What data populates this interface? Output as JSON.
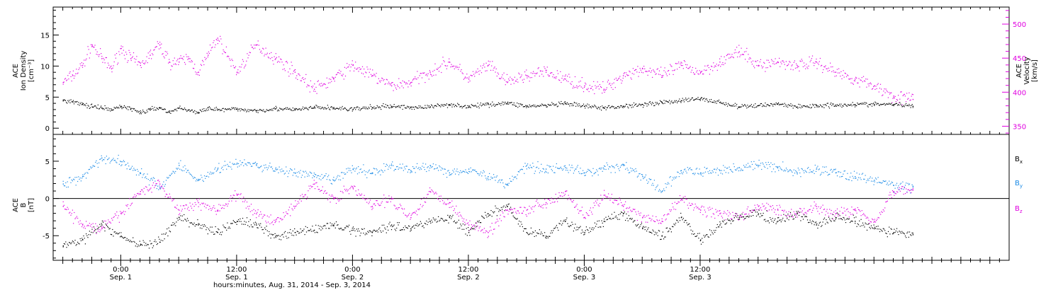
{
  "chart_data": [
    {
      "type": "scatter",
      "panel": "top",
      "ylabel_lines": [
        "ACE",
        "Ion Density",
        "[cm⁻³]"
      ],
      "ylabel2_lines": [
        "ACE",
        "Velocity",
        "[km/s]"
      ],
      "ylim": [
        -1,
        19.5
      ],
      "ylim2": [
        338,
        525
      ],
      "yticks": [
        0,
        5,
        10,
        15
      ],
      "yticks2": [
        350,
        400,
        450,
        500
      ],
      "ytick_labels": [
        "0",
        "5",
        "10",
        "15"
      ],
      "ytick2_labels": [
        "350",
        "400",
        "450",
        "500"
      ],
      "colors": {
        "density": "#000000",
        "velocity": "#e000e0"
      },
      "series": [
        {
          "key": "density",
          "color": "#000000",
          "x": [
            -6,
            -5,
            -4,
            -3,
            -2,
            -1,
            0,
            1,
            2,
            3,
            4,
            5,
            6,
            7,
            8,
            9,
            10,
            12,
            14,
            16,
            18,
            20,
            22,
            24,
            26,
            28,
            30,
            32,
            34,
            36,
            38,
            40,
            42,
            44,
            46,
            48,
            50,
            52,
            54,
            56,
            58,
            60,
            62,
            64,
            66,
            68,
            70,
            72,
            74,
            76,
            78,
            80,
            82
          ],
          "y": [
            4.6,
            4.3,
            3.9,
            3.5,
            3.3,
            3.0,
            3.6,
            3.2,
            2.6,
            3.0,
            3.4,
            2.6,
            3.3,
            3.0,
            2.5,
            3.4,
            3.0,
            3.1,
            2.9,
            3.2,
            3.0,
            3.4,
            3.3,
            3.1,
            3.4,
            3.6,
            3.4,
            3.5,
            3.9,
            3.5,
            3.9,
            4.1,
            3.6,
            3.7,
            4.0,
            3.6,
            3.3,
            3.6,
            3.9,
            4.2,
            4.5,
            4.8,
            4.2,
            3.5,
            3.7,
            4.0,
            3.5,
            3.7,
            3.8,
            3.9,
            3.9,
            3.9,
            3.6
          ]
        },
        {
          "key": "velocity",
          "color": "#e000e0",
          "x": [
            -6,
            -5,
            -4,
            -3,
            -2,
            -1,
            0,
            1,
            2,
            3,
            4,
            5,
            6,
            7,
            8,
            9,
            10,
            12,
            14,
            16,
            18,
            20,
            22,
            24,
            26,
            28,
            30,
            32,
            34,
            36,
            38,
            40,
            42,
            44,
            46,
            48,
            50,
            52,
            54,
            56,
            58,
            60,
            62,
            64,
            66,
            68,
            70,
            72,
            74,
            76,
            78,
            80,
            82
          ],
          "y": [
            415,
            425,
            440,
            470,
            450,
            435,
            465,
            450,
            440,
            455,
            470,
            445,
            445,
            450,
            430,
            455,
            480,
            430,
            470,
            450,
            430,
            405,
            420,
            440,
            425,
            410,
            415,
            430,
            445,
            420,
            440,
            415,
            425,
            430,
            420,
            410,
            405,
            425,
            435,
            425,
            440,
            430,
            445,
            460,
            440,
            445,
            440,
            445,
            430,
            420,
            410,
            395,
            390
          ]
        }
      ]
    },
    {
      "type": "scatter",
      "panel": "bottom",
      "ylabel_lines": [
        "ACE",
        "B",
        "[nT]"
      ],
      "ylim": [
        -8.3,
        8.6
      ],
      "yticks": [
        -5,
        0,
        5
      ],
      "ytick_labels": [
        "-5",
        "0",
        "5"
      ],
      "zero_line": 0,
      "legend": [
        {
          "label": "B",
          "sub": "x",
          "color": "#000000"
        },
        {
          "label": "B",
          "sub": "y",
          "color": "#1a8ae6"
        },
        {
          "label": "B",
          "sub": "z",
          "color": "#e000e0"
        }
      ],
      "series": [
        {
          "key": "Bx",
          "color": "#000000",
          "x": [
            -6,
            -4,
            -2,
            0,
            2,
            4,
            6,
            8,
            10,
            12,
            14,
            16,
            18,
            20,
            22,
            24,
            26,
            28,
            30,
            32,
            34,
            36,
            38,
            40,
            42,
            44,
            46,
            48,
            50,
            52,
            54,
            56,
            58,
            60,
            62,
            64,
            66,
            68,
            70,
            72,
            74,
            76,
            78,
            80,
            82
          ],
          "y": [
            -6.3,
            -5.5,
            -3.5,
            -5.0,
            -6.2,
            -5.8,
            -2.5,
            -3.5,
            -4.5,
            -3.0,
            -3.5,
            -5.0,
            -4.5,
            -4.2,
            -3.5,
            -4.2,
            -4.5,
            -3.5,
            -4.0,
            -3.0,
            -2.5,
            -4.5,
            -2.0,
            -1.0,
            -4.5,
            -5.0,
            -3.0,
            -4.5,
            -3.0,
            -2.0,
            -4.0,
            -5.0,
            -2.5,
            -5.5,
            -3.5,
            -2.5,
            -2.0,
            -3.0,
            -2.0,
            -3.5,
            -2.5,
            -3.0,
            -4.0,
            -4.5,
            -4.8
          ]
        },
        {
          "key": "By",
          "color": "#1a8ae6",
          "x": [
            -6,
            -4,
            -2,
            0,
            2,
            4,
            6,
            8,
            10,
            12,
            14,
            16,
            18,
            20,
            22,
            24,
            26,
            28,
            30,
            32,
            34,
            36,
            38,
            40,
            42,
            44,
            46,
            48,
            50,
            52,
            54,
            56,
            58,
            60,
            62,
            64,
            66,
            68,
            70,
            72,
            74,
            76,
            78,
            80,
            82
          ],
          "y": [
            2.0,
            3.0,
            5.5,
            5.0,
            3.5,
            1.5,
            4.5,
            2.5,
            4.0,
            4.8,
            4.5,
            4.0,
            3.5,
            3.0,
            2.5,
            4.0,
            3.5,
            4.5,
            3.8,
            4.5,
            3.5,
            4.0,
            3.0,
            2.0,
            4.5,
            4.0,
            4.2,
            3.5,
            4.0,
            4.5,
            3.0,
            1.0,
            3.8,
            3.5,
            3.8,
            4.2,
            4.5,
            4.3,
            3.5,
            4.0,
            3.5,
            3.0,
            2.5,
            1.8,
            1.6
          ]
        },
        {
          "key": "Bz",
          "color": "#e000e0",
          "x": [
            -6,
            -4,
            -2,
            0,
            2,
            4,
            6,
            8,
            10,
            12,
            14,
            16,
            18,
            20,
            22,
            24,
            26,
            28,
            30,
            32,
            34,
            36,
            38,
            40,
            42,
            44,
            46,
            48,
            50,
            52,
            54,
            56,
            58,
            60,
            62,
            64,
            66,
            68,
            70,
            72,
            74,
            76,
            78,
            80,
            82
          ],
          "y": [
            -1.0,
            -3.5,
            -4.0,
            -2.0,
            1.0,
            2.0,
            -1.5,
            -0.5,
            -1.5,
            0.5,
            -2.0,
            -3.0,
            -1.0,
            2.0,
            0.0,
            1.5,
            -1.0,
            0.0,
            -2.5,
            1.0,
            -0.5,
            -3.5,
            -4.5,
            -1.5,
            -1.5,
            -0.5,
            1.0,
            -2.5,
            0.5,
            -1.0,
            -2.5,
            -3.0,
            0.0,
            -1.5,
            -2.0,
            -2.5,
            -1.0,
            -1.5,
            -2.0,
            -1.0,
            -2.0,
            -1.5,
            -3.0,
            1.0,
            1.2
          ]
        }
      ]
    }
  ],
  "time_axis": {
    "range_hours": [
      -7,
      92
    ],
    "major_ticks_hours": [
      0,
      12,
      24,
      36,
      48,
      60
    ],
    "major_labels": [
      "0:00",
      "12:00",
      "0:00",
      "12:00",
      "0:00",
      "12:00"
    ],
    "day_labels": [
      "Sep. 1",
      "Sep. 1",
      "Sep. 2",
      "Sep. 2",
      "Sep. 3",
      "Sep. 3"
    ],
    "xlabel": "hours:minutes, Aug. 31, 2014 - Sep.  3, 2014"
  }
}
